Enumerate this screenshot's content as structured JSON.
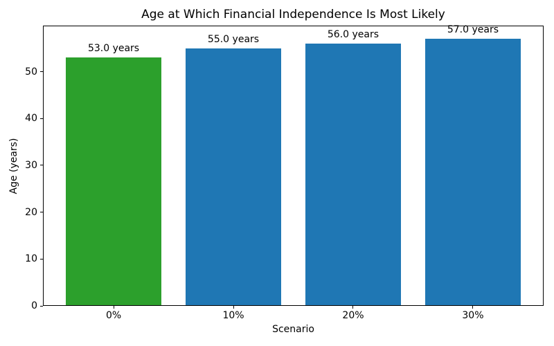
{
  "chart_data": {
    "type": "bar",
    "title": "Age at Which Financial Independence Is Most Likely",
    "xlabel": "Scenario",
    "ylabel": "Age (years)",
    "categories": [
      "0%",
      "10%",
      "20%",
      "30%"
    ],
    "values": [
      53.0,
      55.0,
      56.0,
      57.0
    ],
    "bar_labels": [
      "53.0 years",
      "55.0 years",
      "56.0 years",
      "57.0 years"
    ],
    "bar_colors": [
      "#2ca02c",
      "#1f77b4",
      "#1f77b4",
      "#1f77b4"
    ],
    "yticks": [
      0,
      10,
      20,
      30,
      40,
      50
    ],
    "ylim": [
      0,
      59.85
    ],
    "grid": false,
    "legend_position": "none",
    "background_color": "#ffffff",
    "spine_color": "#000000"
  }
}
